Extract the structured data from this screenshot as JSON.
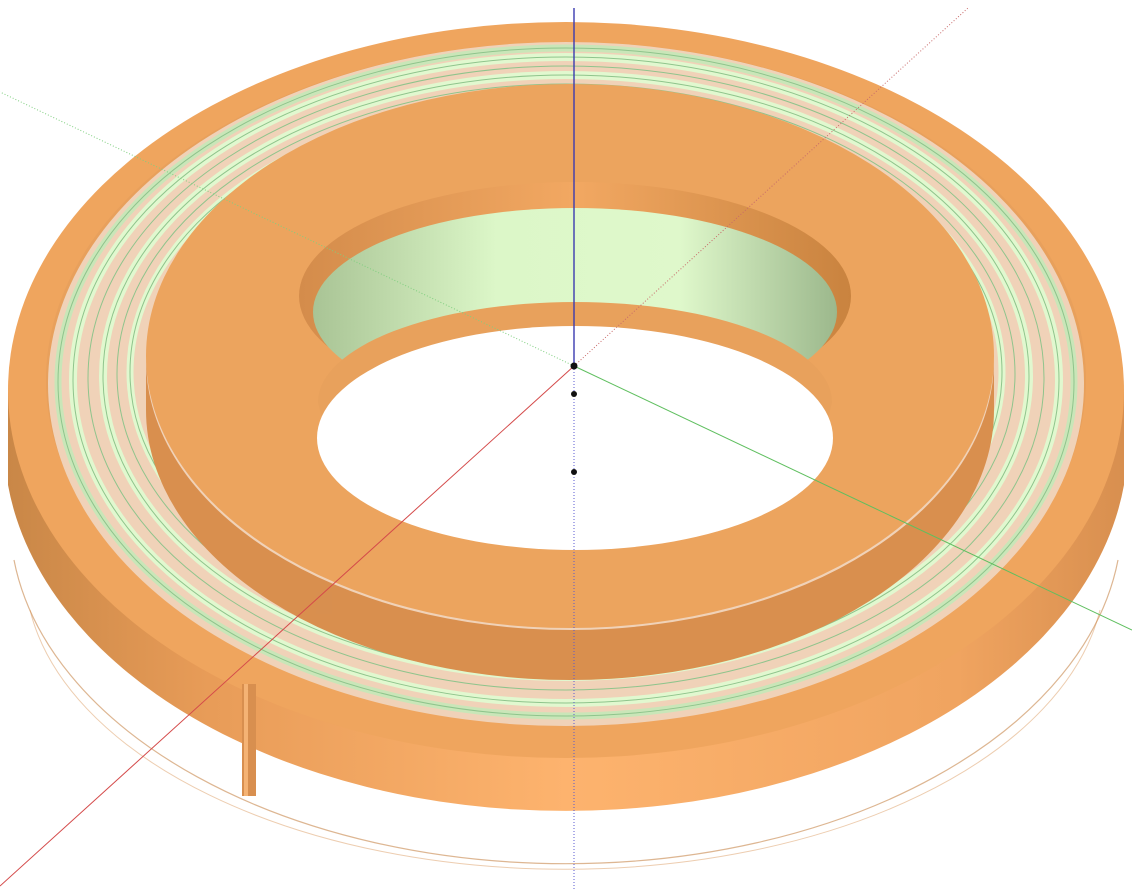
{
  "viewport": {
    "background": "#ffffff"
  },
  "model": {
    "shape": "ring",
    "colors": {
      "body": "#efa55e",
      "body_light": "#fdb36e",
      "body_dark": "#d88f4f",
      "winding_light": "#e1f8cf",
      "winding_mid": "#c9e6b8",
      "winding_band": "#f0d2b8",
      "winding_line": "#8fc48c",
      "inner_wall_light": "#dcf7c8",
      "inner_wall_dark": "#a9c495"
    },
    "winding_turns": 6
  },
  "axes": {
    "x_color": "#d44a4a",
    "y_color": "#5fbf5f",
    "z_color": "#3b3bb0",
    "inference_color": "#c88aa0"
  }
}
